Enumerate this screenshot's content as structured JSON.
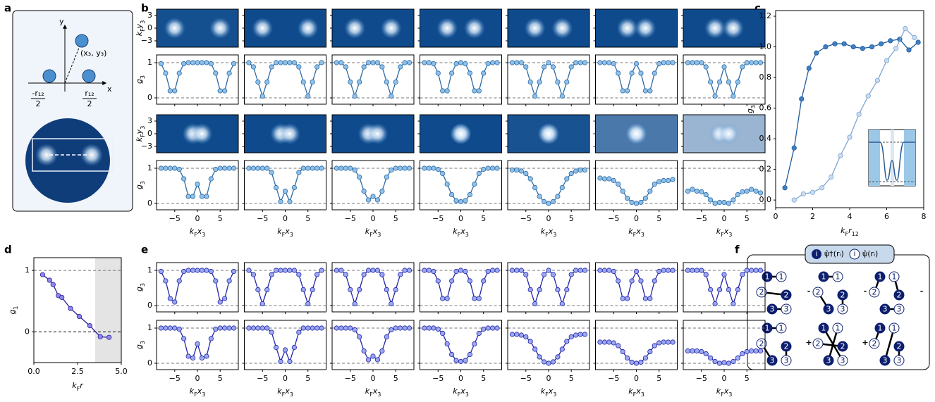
{
  "panel_labels": [
    "a",
    "b",
    "c",
    "d",
    "e",
    "f"
  ],
  "panel_a": {
    "y_axis": "y",
    "x_axis": "x",
    "point": "(x₃, y₃)",
    "left": "-r₁₂",
    "right": "r₁₂",
    "denominator": "2"
  },
  "panel_f": {
    "legend_symbol": "i",
    "legend": [
      "ψ̂†(rᵢ)",
      "ψ̂(rᵢ)"
    ],
    "node_labels": [
      "1",
      "2",
      "3"
    ],
    "operators": [
      "-",
      "-",
      "-",
      "+",
      "+"
    ]
  },
  "chart_data": [
    {
      "type": "line",
      "panel": "b",
      "x": [
        -8,
        -7,
        -6,
        -5,
        -4,
        -3,
        -2,
        -1,
        0,
        1,
        2,
        3,
        4,
        5,
        6,
        7,
        8
      ],
      "xlim": [
        -9,
        9
      ],
      "xticks": [
        {
          "value": -5,
          "label": "−5"
        },
        0,
        5
      ],
      "ylim": [
        -0.18,
        1.22
      ],
      "yticks": [
        0,
        1
      ],
      "grid": true,
      "grid_style": "dashed",
      "ylabel": [
        "g",
        "3"
      ],
      "xlabel": [
        "k",
        "F",
        "x",
        "3"
      ],
      "image_ylabel": [
        "k",
        "F",
        "y",
        "3"
      ],
      "image_ylim": [
        -4.5,
        4.5
      ],
      "image_yticks": [
        3,
        0,
        {
          "value": -3,
          "label": "−3"
        }
      ],
      "color": "#2c6aa6",
      "marker_fill": "#8fc0e8",
      "rows": [
        {
          "series": [
            {
              "values": [
                0.97,
                0.7,
                0.2,
                0.2,
                0.7,
                0.97,
                1,
                1,
                1,
                1,
                1,
                0.97,
                0.7,
                0.2,
                0.2,
                0.7,
                0.97
              ]
            },
            {
              "values": [
                1,
                0.88,
                0.45,
                0.05,
                0.45,
                0.88,
                1,
                1,
                1,
                1,
                1,
                0.88,
                0.45,
                0.05,
                0.45,
                0.88,
                1
              ]
            },
            {
              "values": [
                1,
                1,
                0.88,
                0.45,
                0.05,
                0.45,
                0.88,
                1,
                1,
                1,
                0.88,
                0.45,
                0.05,
                0.45,
                0.88,
                1,
                1
              ]
            },
            {
              "values": [
                1,
                1,
                0.97,
                0.7,
                0.2,
                0.2,
                0.7,
                0.97,
                1,
                0.97,
                0.7,
                0.2,
                0.2,
                0.7,
                0.97,
                1,
                1
              ]
            },
            {
              "values": [
                1,
                1,
                1,
                0.88,
                0.45,
                0.05,
                0.45,
                0.88,
                1,
                0.88,
                0.45,
                0.05,
                0.45,
                0.88,
                1,
                1,
                1
              ]
            },
            {
              "values": [
                1,
                1,
                1,
                0.97,
                0.7,
                0.2,
                0.2,
                0.7,
                0.97,
                0.7,
                0.2,
                0.2,
                0.7,
                0.97,
                1,
                1,
                1
              ]
            },
            {
              "values": [
                1,
                1,
                1,
                1,
                0.88,
                0.45,
                0.05,
                0.45,
                0.88,
                0.45,
                0.05,
                0.45,
                0.88,
                1,
                1,
                1,
                1
              ]
            }
          ]
        },
        {
          "series": [
            {
              "values": [
                1,
                1,
                1,
                1,
                0.97,
                0.7,
                0.2,
                0.2,
                0.55,
                0.2,
                0.2,
                0.7,
                0.97,
                1,
                1,
                1,
                1
              ]
            },
            {
              "values": [
                1,
                1,
                1,
                1,
                1,
                0.88,
                0.45,
                0.05,
                0.35,
                0.05,
                0.45,
                0.88,
                1,
                1,
                1,
                1,
                1
              ]
            },
            {
              "values": [
                1,
                1,
                1,
                1,
                0.95,
                0.75,
                0.35,
                0.1,
                0.2,
                0.1,
                0.35,
                0.75,
                0.95,
                1,
                1,
                1,
                1
              ]
            },
            {
              "values": [
                1,
                1,
                1,
                0.97,
                0.85,
                0.55,
                0.25,
                0.08,
                0.05,
                0.08,
                0.25,
                0.55,
                0.85,
                0.97,
                1,
                1,
                1
              ]
            },
            {
              "values": [
                0.95,
                0.95,
                0.92,
                0.85,
                0.7,
                0.45,
                0.2,
                0.05,
                0,
                0.05,
                0.2,
                0.45,
                0.7,
                0.85,
                0.92,
                0.95,
                0.95
              ]
            },
            {
              "values": [
                0.72,
                0.7,
                0.7,
                0.65,
                0.55,
                0.35,
                0.15,
                0.03,
                0,
                0.03,
                0.15,
                0.35,
                0.55,
                0.62,
                0.65,
                0.65,
                0.68
              ]
            },
            {
              "values": [
                0.35,
                0.4,
                0.35,
                0.33,
                0.25,
                0.1,
                0,
                0.03,
                0.03,
                0,
                0.1,
                0.25,
                0.33,
                0.35,
                0.4,
                0.35,
                0.3
              ]
            }
          ]
        }
      ]
    },
    {
      "type": "line",
      "panel": "e",
      "x": [
        -8,
        -7,
        -6,
        -5,
        -4,
        -3,
        -2,
        -1,
        0,
        1,
        2,
        3,
        4,
        5,
        6,
        7,
        8
      ],
      "xlim": [
        -9,
        9
      ],
      "xticks": [
        {
          "value": -5,
          "label": "−5"
        },
        0,
        5
      ],
      "ylim": [
        -0.18,
        1.22
      ],
      "yticks": [
        0,
        1
      ],
      "grid": true,
      "grid_style": "dashed",
      "ylabel": [
        "g",
        "3"
      ],
      "xlabel": [
        "k",
        "F",
        "x",
        "3"
      ],
      "color": "#2323a8",
      "marker_fill": "#9aa8f0",
      "rows": [
        {
          "series": [
            {
              "values": [
                0.97,
                0.7,
                0.2,
                0.1,
                0.7,
                0.97,
                1,
                1,
                1,
                1,
                1,
                0.97,
                0.7,
                0.1,
                0.2,
                0.7,
                0.97
              ]
            },
            {
              "values": [
                1,
                0.88,
                0.45,
                0.05,
                0.45,
                0.88,
                1,
                1,
                1,
                1,
                1,
                0.88,
                0.45,
                0.05,
                0.45,
                0.88,
                1
              ]
            },
            {
              "values": [
                1,
                1,
                0.88,
                0.45,
                0.05,
                0.45,
                0.88,
                1,
                1,
                1,
                0.88,
                0.45,
                0.05,
                0.45,
                0.88,
                1,
                1
              ]
            },
            {
              "values": [
                1,
                1,
                0.97,
                0.7,
                0.2,
                0.2,
                0.7,
                0.97,
                1,
                0.97,
                0.7,
                0.2,
                0.2,
                0.7,
                0.97,
                1,
                1
              ]
            },
            {
              "values": [
                1,
                1,
                1,
                0.88,
                0.45,
                0.05,
                0.45,
                0.88,
                1,
                0.88,
                0.45,
                0.05,
                0.45,
                0.88,
                1,
                1,
                1
              ]
            },
            {
              "values": [
                1,
                1,
                1,
                0.97,
                0.7,
                0.2,
                0.2,
                0.7,
                0.97,
                0.7,
                0.2,
                0.2,
                0.7,
                0.97,
                1,
                1,
                1
              ]
            },
            {
              "values": [
                1,
                1,
                1,
                1,
                0.88,
                0.45,
                0.05,
                0.45,
                0.88,
                0.45,
                0.05,
                0.45,
                0.88,
                1,
                1,
                1,
                1
              ]
            }
          ]
        },
        {
          "series": [
            {
              "values": [
                1,
                1,
                1,
                1,
                0.97,
                0.7,
                0.2,
                0.15,
                0.55,
                0.15,
                0.2,
                0.7,
                0.97,
                1,
                1,
                1,
                1
              ]
            },
            {
              "values": [
                1,
                1,
                1,
                1,
                1,
                0.88,
                0.45,
                0.05,
                0.38,
                0.05,
                0.45,
                0.88,
                1,
                1,
                1,
                1,
                1
              ]
            },
            {
              "values": [
                1,
                1,
                1,
                1,
                0.95,
                0.75,
                0.35,
                0.1,
                0.2,
                0.1,
                0.35,
                0.75,
                0.95,
                1,
                1,
                1,
                1
              ]
            },
            {
              "values": [
                1,
                1,
                1,
                0.97,
                0.85,
                0.55,
                0.25,
                0.08,
                0.05,
                0.08,
                0.25,
                0.55,
                0.85,
                0.97,
                1,
                1,
                1
              ]
            },
            {
              "values": [
                0.82,
                0.82,
                0.8,
                0.75,
                0.62,
                0.4,
                0.18,
                0.04,
                0,
                0.04,
                0.18,
                0.4,
                0.62,
                0.75,
                0.8,
                0.82,
                0.82
              ]
            },
            {
              "values": [
                0.6,
                0.6,
                0.6,
                0.58,
                0.5,
                0.33,
                0.15,
                0.03,
                0,
                0.03,
                0.15,
                0.33,
                0.5,
                0.58,
                0.6,
                0.6,
                0.6
              ]
            },
            {
              "values": [
                0.35,
                0.35,
                0.35,
                0.33,
                0.27,
                0.15,
                0.05,
                0,
                0.02,
                0,
                0.05,
                0.15,
                0.27,
                0.33,
                0.35,
                0.35,
                0.35
              ]
            }
          ]
        }
      ]
    },
    {
      "type": "scatter",
      "panel": "c",
      "xlim": [
        0,
        8
      ],
      "xticks": [
        0,
        2,
        4,
        6,
        8
      ],
      "ylim": [
        -0.05,
        1.237
      ],
      "yticks": [
        {
          "value": 0,
          "label": "0.0"
        },
        {
          "value": 0.2,
          "label": "0.2"
        },
        {
          "value": 0.4,
          "label": "0.4"
        },
        {
          "value": 0.6,
          "label": "0.6"
        },
        {
          "value": 0.8,
          "label": "0.8"
        },
        {
          "value": 1,
          "label": "1.0"
        },
        {
          "value": 1.2,
          "label": "1.2"
        }
      ],
      "ylabel": [
        "g",
        "3"
      ],
      "xlabel": [
        "k",
        "F",
        "r",
        "12"
      ],
      "series": [
        {
          "color": "#1f5a9e",
          "marker_fill": "#3f7fc4",
          "x": [
            0.5,
            1,
            1.4,
            1.8,
            2.2,
            2.7,
            3.2,
            3.7,
            4.2,
            4.7,
            5.2,
            5.7,
            6.2,
            6.7,
            7.2,
            7.7
          ],
          "values": [
            0.08,
            0.34,
            0.66,
            0.86,
            0.96,
            1,
            1.02,
            1.02,
            1,
            0.99,
            1,
            1.02,
            1.04,
            1.05,
            0.98,
            1.03
          ]
        },
        {
          "color": "#7fa6d4",
          "marker_fill": "#c9dcf0",
          "x": [
            1,
            1.5,
            2,
            2.5,
            3,
            3.5,
            4,
            4.5,
            5,
            5.5,
            6,
            6.5,
            7,
            7.5
          ],
          "values": [
            0,
            0.04,
            0.05,
            0.08,
            0.15,
            0.29,
            0.41,
            0.56,
            0.68,
            0.78,
            0.91,
            0.99,
            1.12,
            1.06
          ]
        }
      ]
    },
    {
      "type": "scatter",
      "panel": "d",
      "xlim": [
        0,
        5
      ],
      "xticks": [
        {
          "value": 0,
          "label": "0.0"
        },
        {
          "value": 2.5,
          "label": "2.5"
        },
        {
          "value": 5,
          "label": "5.0"
        }
      ],
      "ylim": [
        -0.5,
        1.207
      ],
      "yticks": [
        0,
        1
      ],
      "grid": true,
      "grid_style": "dashed",
      "shaded_xrange": [
        3.5,
        5
      ],
      "ylabel": [
        "g",
        "1"
      ],
      "xlabel": [
        "k",
        "F",
        "r"
      ],
      "series": [
        {
          "color": "#2a1fa0",
          "marker_fill": "#8f88e8",
          "x": [
            0.5,
            0.9,
            1.1,
            1.4,
            1.6,
            2.1,
            2.6,
            3.2,
            3.8,
            4.3
          ],
          "values": [
            0.93,
            0.84,
            0.77,
            0.59,
            0.56,
            0.38,
            0.25,
            0.1,
            -0.08,
            -0.09
          ]
        }
      ]
    }
  ]
}
